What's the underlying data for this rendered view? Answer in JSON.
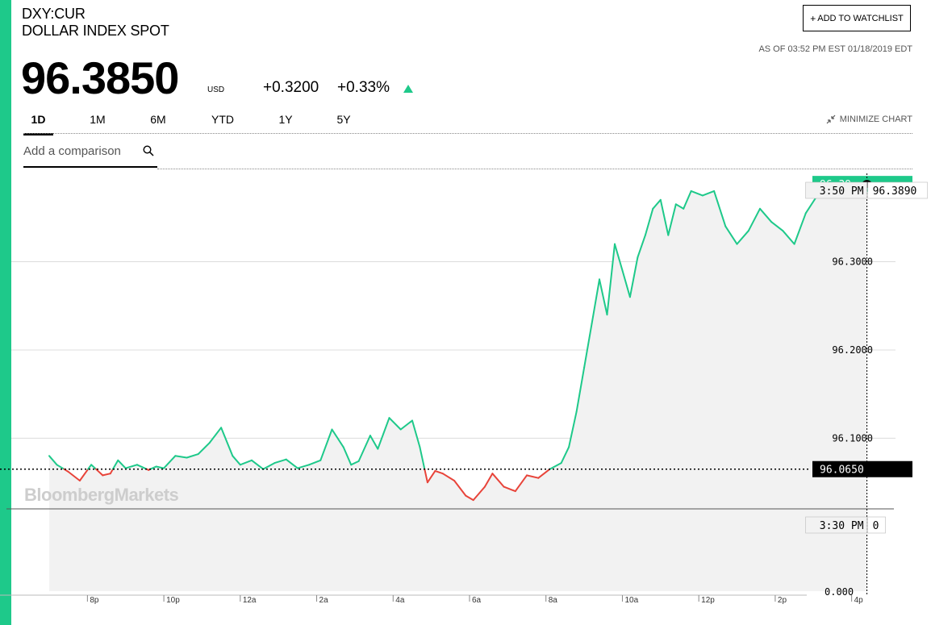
{
  "header": {
    "ticker": "DXY:CUR",
    "name": "DOLLAR INDEX SPOT",
    "price": "96.3850",
    "currency": "USD",
    "change_abs": "+0.3200",
    "change_pct": "+0.33%",
    "as_of": "AS OF 03:52 PM EST 01/18/2019 EDT",
    "watchlist_label": "ADD TO WATCHLIST",
    "direction_icon": "up-triangle-icon"
  },
  "tabs": [
    {
      "label": "1D",
      "active": true
    },
    {
      "label": "1M",
      "active": false
    },
    {
      "label": "6M",
      "active": false
    },
    {
      "label": "YTD",
      "active": false
    },
    {
      "label": "1Y",
      "active": false
    },
    {
      "label": "5Y",
      "active": false
    }
  ],
  "minimize_label": "MINIMIZE CHART",
  "comparison": {
    "placeholder": "Add a comparison",
    "value": ""
  },
  "watermark": "BloombergMarkets",
  "colors": {
    "accent": "#1ec98a",
    "up": "#1ec98a",
    "down": "#e8443a",
    "fill": "#f2f2f2"
  },
  "chart_data": {
    "type": "line",
    "y_ticks": [
      "96.3000",
      "96.2000",
      "96.1000"
    ],
    "ylim": [
      96.02,
      96.4
    ],
    "x_ticks": [
      "8p",
      "10p",
      "12a",
      "2a",
      "4a",
      "6a",
      "8a",
      "10a",
      "12p",
      "2p",
      "4p"
    ],
    "x_tick_hours": [
      20,
      22,
      24,
      26,
      28,
      30,
      32,
      34,
      36,
      38,
      40
    ],
    "xlim_hours": [
      19,
      41
    ],
    "prev_close": "96.0650",
    "last_label": "96.39",
    "crosshair": {
      "time": "3:50 PM",
      "value": "96.3890"
    },
    "volume": {
      "time": "3:30 PM",
      "value": "0",
      "axis_label": "0.000"
    },
    "series": [
      {
        "x": [
          19.0,
          19.2,
          19.5,
          19.8,
          20.1,
          20.4,
          20.6,
          20.8,
          21.0,
          21.3,
          21.6,
          21.8,
          22.0,
          22.3,
          22.6,
          22.9,
          23.2,
          23.5,
          23.8,
          24.0,
          24.3,
          24.6,
          24.9,
          25.2,
          25.5,
          25.8,
          26.1,
          26.4,
          26.7,
          26.9,
          27.1,
          27.4,
          27.6,
          27.9,
          28.2,
          28.5,
          28.7,
          28.9,
          29.1,
          29.3,
          29.6,
          29.9,
          30.1,
          30.4,
          30.6,
          30.9,
          31.2,
          31.5,
          31.8,
          32.1,
          32.4,
          32.6,
          32.8,
          33.0,
          33.2,
          33.4,
          33.6,
          33.8,
          34.0,
          34.2,
          34.4,
          34.6,
          34.8,
          35.0,
          35.2,
          35.4,
          35.6,
          35.8,
          36.1,
          36.4,
          36.7,
          37.0,
          37.3,
          37.6,
          37.9,
          38.2,
          38.5,
          38.8,
          39.1,
          39.4,
          39.7,
          40.0,
          40.2,
          40.4
        ],
        "y": [
          96.08,
          96.07,
          96.062,
          96.052,
          96.07,
          96.058,
          96.06,
          96.075,
          96.066,
          96.07,
          96.064,
          96.068,
          96.066,
          96.08,
          96.078,
          96.082,
          96.095,
          96.112,
          96.08,
          96.07,
          96.075,
          96.065,
          96.072,
          96.076,
          96.066,
          96.07,
          96.075,
          96.11,
          96.09,
          96.07,
          96.074,
          96.103,
          96.088,
          96.123,
          96.11,
          96.12,
          96.09,
          96.05,
          96.063,
          96.06,
          96.052,
          96.035,
          96.03,
          96.045,
          96.06,
          96.045,
          96.04,
          96.058,
          96.055,
          96.065,
          96.072,
          96.09,
          96.13,
          96.18,
          96.23,
          96.28,
          96.24,
          96.32,
          96.29,
          96.26,
          96.305,
          96.33,
          96.36,
          96.37,
          96.33,
          96.365,
          96.36,
          96.38,
          96.375,
          96.38,
          96.34,
          96.32,
          96.335,
          96.36,
          96.345,
          96.335,
          96.32,
          96.355,
          96.375,
          96.385,
          96.389,
          96.385,
          96.387,
          96.388
        ]
      }
    ]
  }
}
